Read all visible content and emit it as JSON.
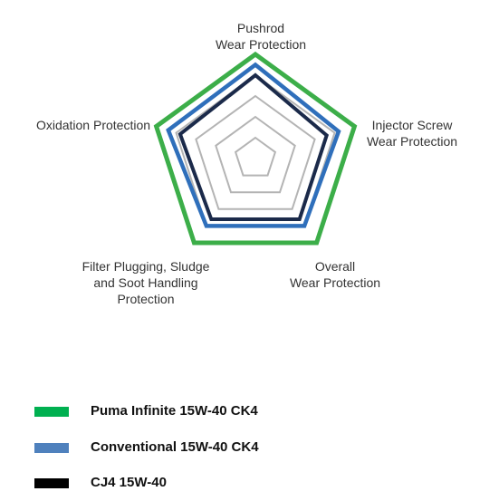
{
  "chart_data": {
    "type": "radar",
    "title": "",
    "axes": [
      "Pushrod\nWear Protection",
      "Injector Screw\nWear Protection",
      "Overall\nWear Protection",
      "Filter Plugging, Sludge\nand Soot Handling\nProtection",
      "Oxidation Protection"
    ],
    "scale": {
      "min": 0,
      "max": 5,
      "rings": [
        1,
        2,
        3,
        4,
        5
      ]
    },
    "series": [
      {
        "name": "Puma Infinite 15W-40 CK4",
        "color": "#3cae49",
        "values": [
          5,
          5,
          5,
          5,
          5
        ]
      },
      {
        "name": "Conventional 15W-40 CK4",
        "color": "#2f6fbb",
        "values": [
          4.5,
          4.2,
          4.0,
          4.0,
          4.4
        ]
      },
      {
        "name": "CJ4 15W-40",
        "color": "#1b2a4a",
        "values": [
          4.0,
          3.6,
          3.6,
          3.6,
          3.8
        ]
      }
    ],
    "grid": true,
    "legend_position": "bottom-left"
  },
  "legend": {
    "items": [
      {
        "label": "Puma Infinite 15W-40 CK4",
        "color": "#00b050"
      },
      {
        "label": "Conventional 15W-40 CK4",
        "color": "#4f81bd"
      },
      {
        "label": "CJ4 15W-40",
        "color": "#000000"
      }
    ]
  }
}
